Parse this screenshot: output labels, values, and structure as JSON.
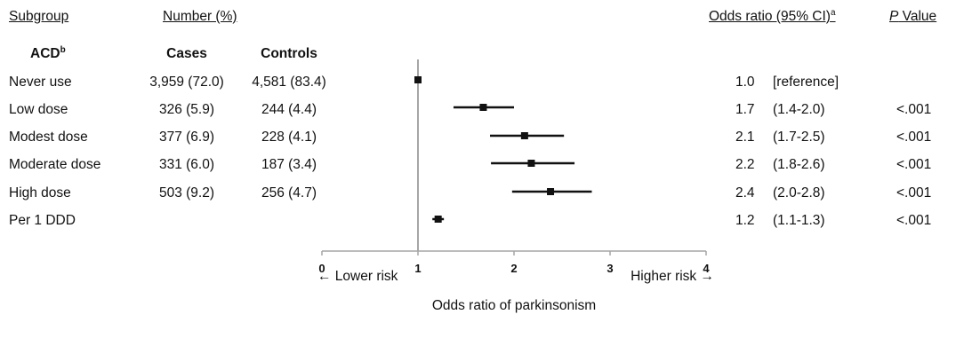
{
  "headers": {
    "subgroup": "Subgroup",
    "number": "Number (%)",
    "odds_ratio": "Odds ratio (95% CI)",
    "odds_ratio_sup": "a",
    "p_value_italic": "P",
    "p_value_rest": " Value"
  },
  "subheaders": {
    "acd": "ACD",
    "acd_sup": "b",
    "cases": "Cases",
    "controls": "Controls"
  },
  "rows": [
    {
      "label": "Never use",
      "cases": "3,959 (72.0)",
      "controls": "4,581 (83.4)",
      "or": "1.0",
      "ci": "[reference]",
      "p": ""
    },
    {
      "label": "Low dose",
      "cases": "326 (5.9)",
      "controls": "244 (4.4)",
      "or": "1.7",
      "ci": "(1.4-2.0)",
      "p": "<.001"
    },
    {
      "label": "Modest dose",
      "cases": "377 (6.9)",
      "controls": "228 (4.1)",
      "or": "2.1",
      "ci": "(1.7-2.5)",
      "p": "<.001"
    },
    {
      "label": "Moderate dose",
      "cases": "331 (6.0)",
      "controls": "187 (3.4)",
      "or": "2.2",
      "ci": "(1.8-2.6)",
      "p": "<.001"
    },
    {
      "label": "High dose",
      "cases": "503 (9.2)",
      "controls": "256 (4.7)",
      "or": "2.4",
      "ci": "(2.0-2.8)",
      "p": "<.001"
    },
    {
      "label": "Per 1 DDD",
      "cases": "",
      "controls": "",
      "or": "1.2",
      "ci": "(1.1-1.3)",
      "p": "<.001"
    }
  ],
  "axis": {
    "lower_risk": "← Lower risk",
    "higher_risk": "Higher risk →",
    "xlabel": "Odds ratio of parkinsonism"
  },
  "chart_data": {
    "type": "forest",
    "xlim": [
      0,
      4
    ],
    "xticks": [
      0,
      1,
      2,
      3,
      4
    ],
    "reference_line": 1,
    "xlabel": "Odds ratio of parkinsonism",
    "categories": [
      "Never use",
      "Low dose",
      "Modest dose",
      "Moderate dose",
      "High dose",
      "Per 1 DDD"
    ],
    "estimates": [
      1.0,
      1.68,
      2.11,
      2.18,
      2.38,
      1.21
    ],
    "ci_low": [
      1.0,
      1.37,
      1.75,
      1.76,
      1.98,
      1.15
    ],
    "ci_high": [
      1.0,
      2.0,
      2.52,
      2.63,
      2.81,
      1.27
    ],
    "marker_color": "#111111",
    "reference_line_color": "#a6a6a6"
  }
}
